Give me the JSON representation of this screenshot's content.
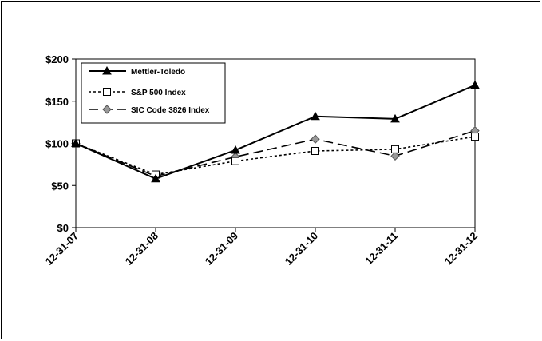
{
  "chart_data": {
    "type": "line",
    "categories": [
      "12-31-07",
      "12-31-08",
      "12-31-09",
      "12-31-10",
      "12-31-11",
      "12-31-12"
    ],
    "ylim": [
      0,
      200
    ],
    "yticks": [
      0,
      50,
      100,
      150,
      200
    ],
    "ytick_labels": [
      "$0",
      "$50",
      "$100",
      "$150",
      "$200"
    ],
    "grid": false,
    "legend_position": "top-left",
    "series": [
      {
        "name": "Mettler-Toledo",
        "values": [
          100,
          58,
          92,
          132,
          129,
          169
        ],
        "marker": "triangle",
        "dash": "solid",
        "marker_color": "#000000"
      },
      {
        "name": "S&P 500 Index",
        "values": [
          100,
          63,
          79,
          91,
          93,
          108
        ],
        "marker": "square",
        "dash": "dotted",
        "marker_color": "#ffffff"
      },
      {
        "name": "SIC Code 3826 Index",
        "values": [
          100,
          61,
          84,
          105,
          85,
          115
        ],
        "marker": "diamond",
        "dash": "dashed",
        "marker_color": "#999999"
      }
    ]
  }
}
